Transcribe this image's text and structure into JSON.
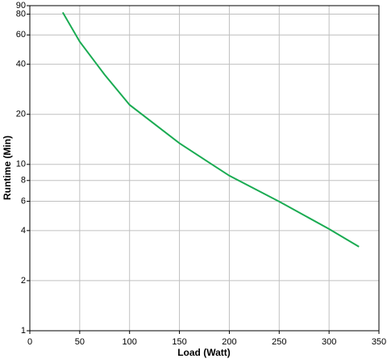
{
  "chart_data": {
    "type": "line",
    "x_label": "Load (Watt)",
    "y_label": "Runtime (Min)",
    "x": [
      33,
      50,
      75,
      100,
      150,
      200,
      250,
      300,
      330
    ],
    "series": [
      {
        "name": "Runtime",
        "color": "#1aab52",
        "values": [
          82,
          54.7,
          34.6,
          22.8,
          13.4,
          8.55,
          5.98,
          4.09,
          3.2
        ]
      }
    ],
    "xlim": [
      0,
      350
    ],
    "xticks": [
      0,
      50,
      100,
      150,
      200,
      250,
      300,
      350
    ],
    "ylim": [
      1,
      90
    ],
    "yticks": [
      1,
      2,
      4,
      6,
      8,
      10,
      20,
      40,
      60,
      80,
      90
    ],
    "y_log": true,
    "grid": true
  }
}
